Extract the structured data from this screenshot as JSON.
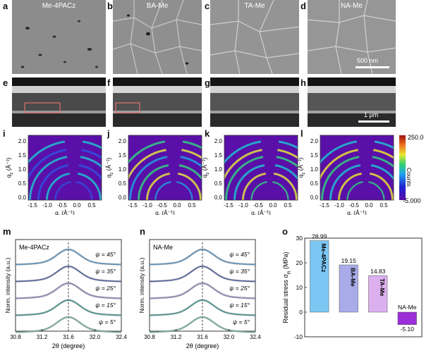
{
  "panel_letters": [
    "a",
    "b",
    "c",
    "d",
    "e",
    "f",
    "g",
    "h",
    "i",
    "j",
    "k",
    "l",
    "m",
    "n",
    "o"
  ],
  "sem_top": {
    "labels": [
      "Me-4PACz",
      "BA-Me",
      "TA-Me",
      "NA-Me"
    ],
    "scale_bar": "500 nm"
  },
  "sem_cross": {
    "scale_bar": "1 μm"
  },
  "giwaxs": {
    "xlabel": "q",
    "xlabel_sub": "r",
    "xunit": " (Å⁻¹)",
    "ylabel": "q",
    "ylabel_sub": "z",
    "yunit": " (Å⁻¹)",
    "xticks": [
      "-1.5",
      "-1.0",
      "-0.5",
      "0.0",
      "0.5"
    ],
    "yticks": [
      "0.0",
      "0.5",
      "1.0",
      "1.5",
      "2.0"
    ],
    "colorbar": {
      "max": "250.0",
      "min": "-5.000",
      "label": "Counts"
    }
  },
  "xrd": {
    "xlabel": "2θ (degree)",
    "ylabel": "Norm. intensity (a.u.)",
    "xticks": [
      "30.8",
      "31.2",
      "31.6",
      "32.0",
      "32.4"
    ],
    "psi_labels": [
      "ψ = 45°",
      "ψ = 35°",
      "ψ = 25°",
      "ψ = 15°",
      "ψ = 5°"
    ],
    "panel_m_title": "Me-4PACz",
    "panel_n_title": "NA-Me",
    "line_colors": [
      "#5aa0d8",
      "#4f63b0",
      "#9b8fd1",
      "#3aa29a",
      "#7ac7a8"
    ]
  },
  "chart_data": {
    "type": "bar",
    "categories": [
      "Me-4PACz",
      "BA-Me",
      "TA-Me",
      "NA-Me"
    ],
    "values": [
      28.99,
      19.15,
      14.83,
      -5.1
    ],
    "value_labels": [
      "28.99",
      "19.15",
      "14.83",
      "-5.10"
    ],
    "colors": [
      "#7cc6f4",
      "#a9abe9",
      "#dcb0ee",
      "#9b2ed6"
    ],
    "ylabel": "Residual stress σ",
    "ylabel_sub": "R",
    "yunit": " (MPa)",
    "ylim": [
      -10,
      30
    ],
    "yticks": [
      -10,
      0,
      10,
      20,
      30
    ]
  }
}
